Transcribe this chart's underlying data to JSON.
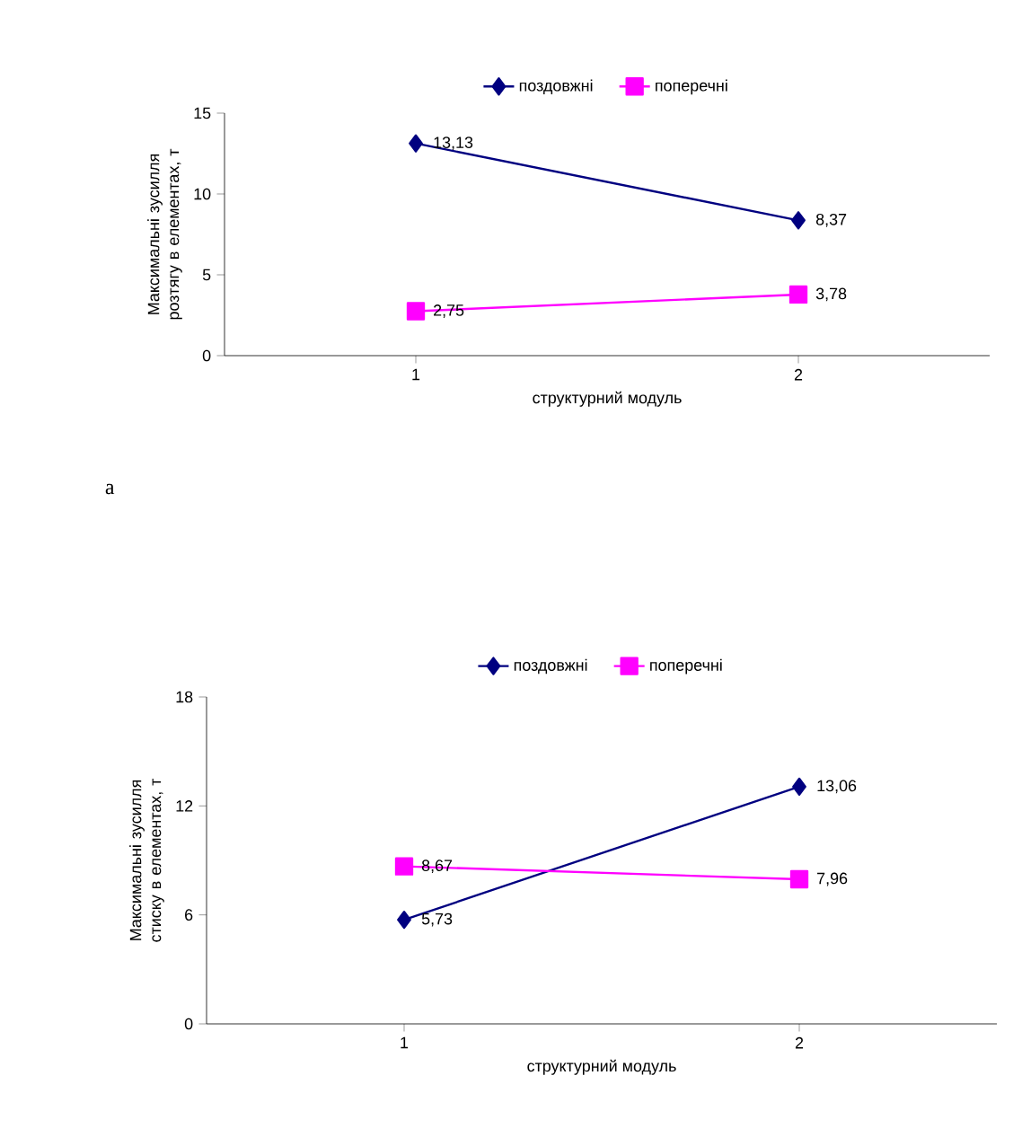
{
  "chart_data": [
    {
      "type": "line",
      "categories": [
        "1",
        "2"
      ],
      "xlabel": "структурний модуль",
      "ylabel": "Максимальні зусилля розтягу в елементах, т",
      "ylim": [
        0,
        15
      ],
      "yticks": [
        0,
        5,
        10,
        15
      ],
      "legend": "top",
      "annotations": [
        "а"
      ],
      "series": [
        {
          "name": "поздовжні",
          "color": "#000080",
          "marker": "diamond",
          "values": [
            13.13,
            8.37
          ],
          "value_labels": [
            "13,13",
            "8,37"
          ]
        },
        {
          "name": "поперечні",
          "color": "#ff00ff",
          "marker": "square",
          "values": [
            2.75,
            3.78
          ],
          "value_labels": [
            "2,75",
            "3,78"
          ]
        }
      ]
    },
    {
      "type": "line",
      "categories": [
        "1",
        "2"
      ],
      "xlabel": "структурний модуль",
      "ylabel": "Максимальні зусилля стиску в елементах, т",
      "ylim": [
        0,
        18
      ],
      "yticks": [
        0,
        6,
        12,
        18
      ],
      "legend": "top",
      "series": [
        {
          "name": "поздовжні",
          "color": "#000080",
          "marker": "diamond",
          "values": [
            5.73,
            13.06
          ],
          "value_labels": [
            "5,73",
            "13,06"
          ]
        },
        {
          "name": "поперечні",
          "color": "#ff00ff",
          "marker": "square",
          "values": [
            8.67,
            7.96
          ],
          "value_labels": [
            "8,67",
            "7,96"
          ]
        }
      ]
    }
  ]
}
